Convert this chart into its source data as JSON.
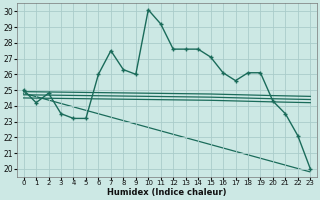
{
  "xlabel": "Humidex (Indice chaleur)",
  "xlim": [
    -0.5,
    23.5
  ],
  "ylim": [
    19.5,
    30.5
  ],
  "yticks": [
    20,
    21,
    22,
    23,
    24,
    25,
    26,
    27,
    28,
    29,
    30
  ],
  "xticks": [
    0,
    1,
    2,
    3,
    4,
    5,
    6,
    7,
    8,
    9,
    10,
    11,
    12,
    13,
    14,
    15,
    16,
    17,
    18,
    19,
    20,
    21,
    22,
    23
  ],
  "bg_color": "#cce8e4",
  "grid_color": "#aaccca",
  "line_color": "#1a6b5a",
  "line1_x": [
    0,
    1,
    2,
    3,
    4,
    5,
    6,
    7,
    8,
    9,
    10,
    11,
    12,
    13,
    14,
    15,
    16,
    17,
    18,
    19,
    20,
    21,
    22,
    23
  ],
  "line1_y": [
    25.0,
    24.2,
    24.8,
    23.5,
    23.2,
    23.2,
    26.0,
    27.5,
    26.3,
    26.0,
    30.1,
    29.2,
    27.6,
    27.6,
    27.6,
    27.1,
    26.1,
    25.6,
    26.1,
    26.1,
    24.3,
    23.5,
    22.1,
    20.0
  ],
  "line2_x": [
    0,
    5,
    10,
    15,
    20,
    23
  ],
  "line2_y": [
    24.9,
    24.85,
    24.8,
    24.75,
    24.65,
    24.6
  ],
  "line3_x": [
    0,
    5,
    10,
    15,
    20,
    23
  ],
  "line3_y": [
    24.7,
    24.65,
    24.6,
    24.55,
    24.45,
    24.4
  ],
  "line4_x": [
    0,
    5,
    10,
    15,
    20,
    23
  ],
  "line4_y": [
    24.5,
    24.45,
    24.4,
    24.35,
    24.25,
    24.2
  ],
  "line5_x": [
    0,
    23
  ],
  "line5_y": [
    24.8,
    19.8
  ]
}
